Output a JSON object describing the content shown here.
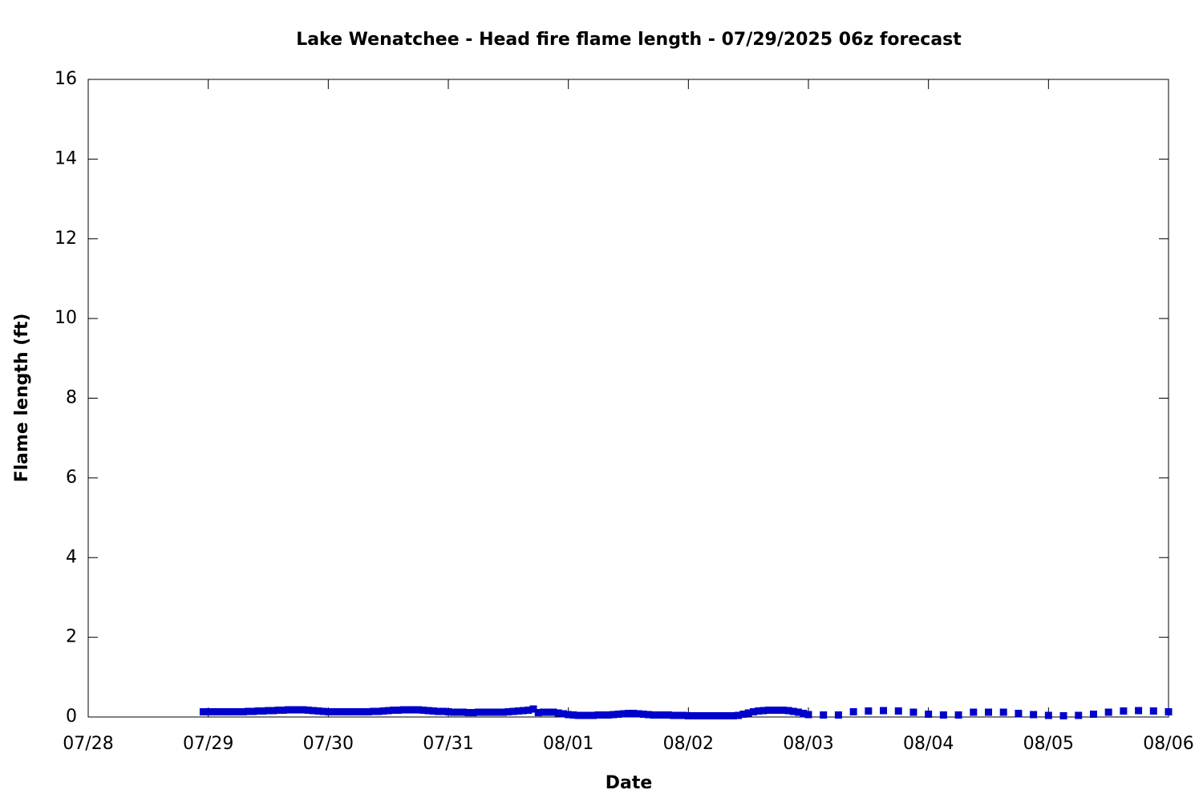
{
  "chart_data": {
    "type": "scatter",
    "title": "Lake Wenatchee - Head fire flame length - 07/29/2025 06z forecast",
    "xlabel": "Date",
    "ylabel": "Flame length (ft)",
    "color": "#0000cc",
    "x": [
      23,
      24,
      25,
      26,
      27,
      28,
      29,
      30,
      31,
      32,
      33,
      34,
      35,
      36,
      37,
      38,
      39,
      40,
      41,
      42,
      43,
      44,
      45,
      46,
      47,
      48,
      49,
      50,
      51,
      52,
      53,
      54,
      55,
      56,
      57,
      58,
      59,
      60,
      61,
      62,
      63,
      64,
      65,
      66,
      67,
      68,
      69,
      70,
      71,
      72,
      73,
      74,
      75,
      76,
      77,
      78,
      79,
      80,
      81,
      82,
      83,
      84,
      85,
      86,
      87,
      88,
      89,
      90,
      91,
      92,
      93,
      94,
      95,
      96,
      97,
      98,
      99,
      100,
      101,
      102,
      103,
      104,
      105,
      106,
      107,
      108,
      109,
      110,
      111,
      112,
      113,
      114,
      115,
      116,
      117,
      118,
      119,
      120,
      121,
      122,
      123,
      124,
      125,
      126,
      127,
      128,
      129,
      130,
      131,
      132,
      133,
      134,
      135,
      136,
      137,
      138,
      139,
      140,
      141,
      142,
      143,
      144,
      147,
      150,
      153,
      156,
      159,
      162,
      165,
      168,
      171,
      174,
      177,
      180,
      183,
      186,
      189,
      192,
      195,
      198,
      201,
      204,
      207,
      210,
      213,
      216
    ],
    "values": [
      0.13,
      0.13,
      0.13,
      0.13,
      0.13,
      0.13,
      0.13,
      0.13,
      0.13,
      0.14,
      0.14,
      0.15,
      0.15,
      0.16,
      0.16,
      0.17,
      0.17,
      0.18,
      0.18,
      0.18,
      0.18,
      0.17,
      0.16,
      0.15,
      0.14,
      0.13,
      0.13,
      0.13,
      0.13,
      0.13,
      0.13,
      0.13,
      0.13,
      0.13,
      0.14,
      0.14,
      0.15,
      0.16,
      0.17,
      0.17,
      0.18,
      0.18,
      0.18,
      0.18,
      0.17,
      0.16,
      0.15,
      0.14,
      0.14,
      0.13,
      0.12,
      0.12,
      0.12,
      0.11,
      0.11,
      0.12,
      0.12,
      0.12,
      0.12,
      0.12,
      0.12,
      0.13,
      0.14,
      0.15,
      0.16,
      0.17,
      0.2,
      0.11,
      0.12,
      0.12,
      0.12,
      0.1,
      0.08,
      0.06,
      0.05,
      0.04,
      0.04,
      0.04,
      0.04,
      0.05,
      0.05,
      0.05,
      0.06,
      0.07,
      0.08,
      0.09,
      0.09,
      0.08,
      0.07,
      0.06,
      0.05,
      0.05,
      0.05,
      0.05,
      0.04,
      0.04,
      0.04,
      0.03,
      0.03,
      0.03,
      0.03,
      0.03,
      0.03,
      0.03,
      0.03,
      0.03,
      0.03,
      0.04,
      0.07,
      0.1,
      0.13,
      0.15,
      0.16,
      0.17,
      0.17,
      0.17,
      0.17,
      0.16,
      0.14,
      0.12,
      0.09,
      0.06,
      0.05,
      0.05,
      0.13,
      0.15,
      0.16,
      0.15,
      0.12,
      0.07,
      0.05,
      0.05,
      0.12,
      0.12,
      0.12,
      0.09,
      0.06,
      0.04,
      0.03,
      0.04,
      0.07,
      0.12,
      0.15,
      0.16,
      0.15,
      0.13
    ],
    "xlim": [
      0,
      216
    ],
    "xticks": [
      {
        "value": 0,
        "label": "07/28"
      },
      {
        "value": 24,
        "label": "07/29"
      },
      {
        "value": 48,
        "label": "07/30"
      },
      {
        "value": 72,
        "label": "07/31"
      },
      {
        "value": 96,
        "label": "08/01"
      },
      {
        "value": 120,
        "label": "08/02"
      },
      {
        "value": 144,
        "label": "08/03"
      },
      {
        "value": 168,
        "label": "08/04"
      },
      {
        "value": 192,
        "label": "08/05"
      },
      {
        "value": 216,
        "label": "08/06"
      }
    ],
    "ylim": [
      0,
      16
    ],
    "yticks": [
      0,
      2,
      4,
      6,
      8,
      10,
      12,
      14,
      16
    ]
  }
}
